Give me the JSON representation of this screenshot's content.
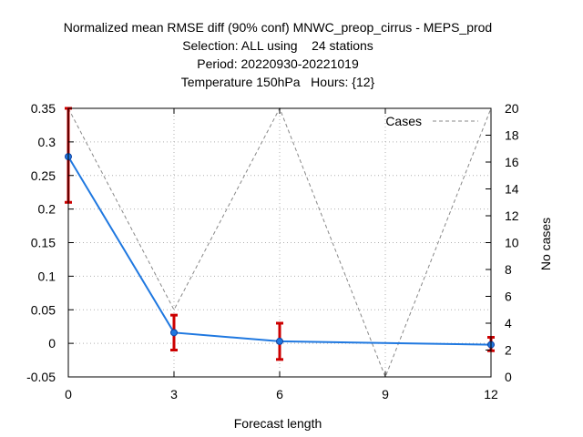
{
  "chart_data": {
    "type": "line",
    "title_lines": [
      "Normalized mean RMSE diff (90% conf) MNWC_preop_cirrus - MEPS_prod",
      "Selection: ALL using    24 stations",
      "Period: 20220930-20221019",
      "Temperature 150hPa   Hours: {12}"
    ],
    "xlabel": "Forecast length",
    "ylabel": "",
    "y2label": "No cases",
    "x_ticks": [
      0,
      3,
      6,
      9,
      12
    ],
    "xlim": [
      0,
      12
    ],
    "ylim": [
      -0.05,
      0.35
    ],
    "y_ticks": [
      -0.05,
      0,
      0.05,
      0.1,
      0.15,
      0.2,
      0.25,
      0.3,
      0.35
    ],
    "y_tick_labels": [
      "-0.05",
      "0",
      "0.05",
      "0.1",
      "0.15",
      "0.2",
      "0.25",
      "0.3",
      "0.35"
    ],
    "y2lim": [
      0,
      20
    ],
    "y2_ticks": [
      0,
      2,
      4,
      6,
      8,
      10,
      12,
      14,
      16,
      18,
      20
    ],
    "grid": true,
    "legend": {
      "label": "Cases",
      "position": "top-right"
    },
    "series": [
      {
        "name": "Normalized mean RMSE diff",
        "color": "#1f78e0",
        "x": [
          0,
          3,
          6,
          12
        ],
        "values": [
          0.278,
          0.016,
          0.003,
          -0.002
        ],
        "ci_low": [
          0.21,
          -0.01,
          -0.024,
          -0.011
        ],
        "ci_high": [
          0.35,
          0.042,
          0.03,
          0.009
        ],
        "errorbar_color": "#cc0000"
      },
      {
        "name": "Cases",
        "axis": "y2",
        "color": "#888888",
        "dash": true,
        "x": [
          0,
          3,
          6,
          9,
          12
        ],
        "values": [
          20,
          5,
          20,
          0,
          20
        ]
      }
    ]
  }
}
